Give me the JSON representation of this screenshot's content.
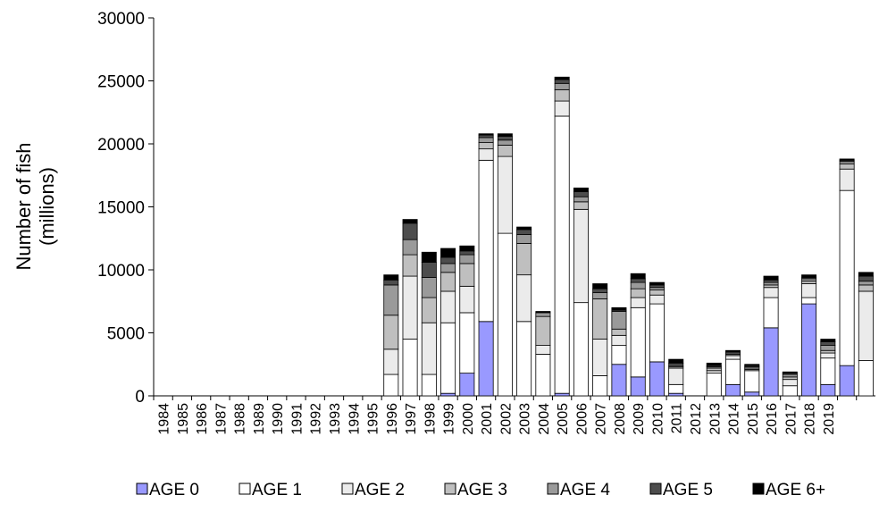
{
  "chart_data": {
    "type": "stacked_bar",
    "y_label": "Number of fish (millions)",
    "categories": [
      "1984",
      "1985",
      "1986",
      "1987",
      "1988",
      "1989",
      "1990",
      "1991",
      "1992",
      "1993",
      "1994",
      "1995",
      "1996",
      "1997",
      "1998",
      "1999",
      "2000",
      "2001",
      "2002",
      "2003",
      "2004",
      "2005",
      "2006",
      "2007",
      "2008",
      "2009",
      "2010",
      "2011",
      "2012",
      "2013",
      "2014",
      "2015",
      "2016",
      "2017",
      "2018",
      "2019",
      null,
      null
    ],
    "series": [
      {
        "name": "AGE 0",
        "color": "#9999ff",
        "values": [
          0,
          0,
          0,
          0,
          0,
          0,
          0,
          0,
          0,
          0,
          0,
          0,
          0,
          0,
          0,
          200,
          1800,
          5900,
          0,
          0,
          0,
          200,
          0,
          0,
          2500,
          1500,
          2700,
          200,
          0,
          0,
          900,
          300,
          5400,
          0,
          7300,
          900,
          2400,
          0
        ]
      },
      {
        "name": "AGE 1",
        "color": "#ffffff",
        "values": [
          0,
          0,
          0,
          0,
          0,
          0,
          0,
          0,
          0,
          0,
          0,
          0,
          1700,
          4500,
          1700,
          5600,
          4800,
          12800,
          12900,
          5900,
          3300,
          22000,
          7400,
          1600,
          1500,
          5500,
          4600,
          700,
          0,
          1800,
          2000,
          1700,
          2400,
          800,
          500,
          2100,
          13900,
          2800
        ]
      },
      {
        "name": "AGE 2",
        "color": "#ebebeb",
        "values": [
          0,
          0,
          0,
          0,
          0,
          0,
          0,
          0,
          0,
          0,
          0,
          0,
          2000,
          5000,
          4100,
          2500,
          2100,
          900,
          6100,
          3700,
          700,
          1200,
          7400,
          2900,
          800,
          800,
          700,
          1300,
          0,
          200,
          300,
          100,
          800,
          500,
          1100,
          400,
          1700,
          5500
        ]
      },
      {
        "name": "AGE 3",
        "color": "#bfbfbf",
        "values": [
          0,
          0,
          0,
          0,
          0,
          0,
          0,
          0,
          0,
          0,
          0,
          0,
          2700,
          1700,
          2000,
          1500,
          1800,
          500,
          900,
          2500,
          2300,
          900,
          600,
          3200,
          500,
          700,
          400,
          100,
          0,
          200,
          100,
          100,
          200,
          200,
          200,
          200,
          400,
          500
        ]
      },
      {
        "name": "AGE 4",
        "color": "#9a9a9a",
        "values": [
          0,
          0,
          0,
          0,
          0,
          0,
          0,
          0,
          0,
          0,
          0,
          0,
          2400,
          1200,
          1600,
          700,
          700,
          400,
          400,
          700,
          300,
          500,
          400,
          500,
          1400,
          500,
          200,
          100,
          0,
          100,
          100,
          100,
          200,
          200,
          200,
          400,
          200,
          300
        ]
      },
      {
        "name": "AGE 5",
        "color": "#4d4d4d",
        "values": [
          0,
          0,
          0,
          0,
          0,
          0,
          0,
          0,
          0,
          0,
          0,
          0,
          400,
          1300,
          1200,
          500,
          300,
          200,
          300,
          400,
          0,
          300,
          400,
          300,
          100,
          300,
          200,
          200,
          0,
          100,
          100,
          100,
          200,
          100,
          100,
          300,
          100,
          400
        ]
      },
      {
        "name": "AGE 6+",
        "color": "#000000",
        "values": [
          0,
          0,
          0,
          0,
          0,
          0,
          0,
          0,
          0,
          0,
          0,
          0,
          400,
          300,
          800,
          700,
          400,
          100,
          200,
          200,
          100,
          200,
          300,
          400,
          200,
          400,
          200,
          300,
          0,
          200,
          100,
          100,
          300,
          100,
          200,
          200,
          100,
          300
        ]
      }
    ],
    "ylim": [
      0,
      30000
    ],
    "yticks": [
      0,
      5000,
      10000,
      15000,
      20000,
      25000,
      30000
    ]
  }
}
